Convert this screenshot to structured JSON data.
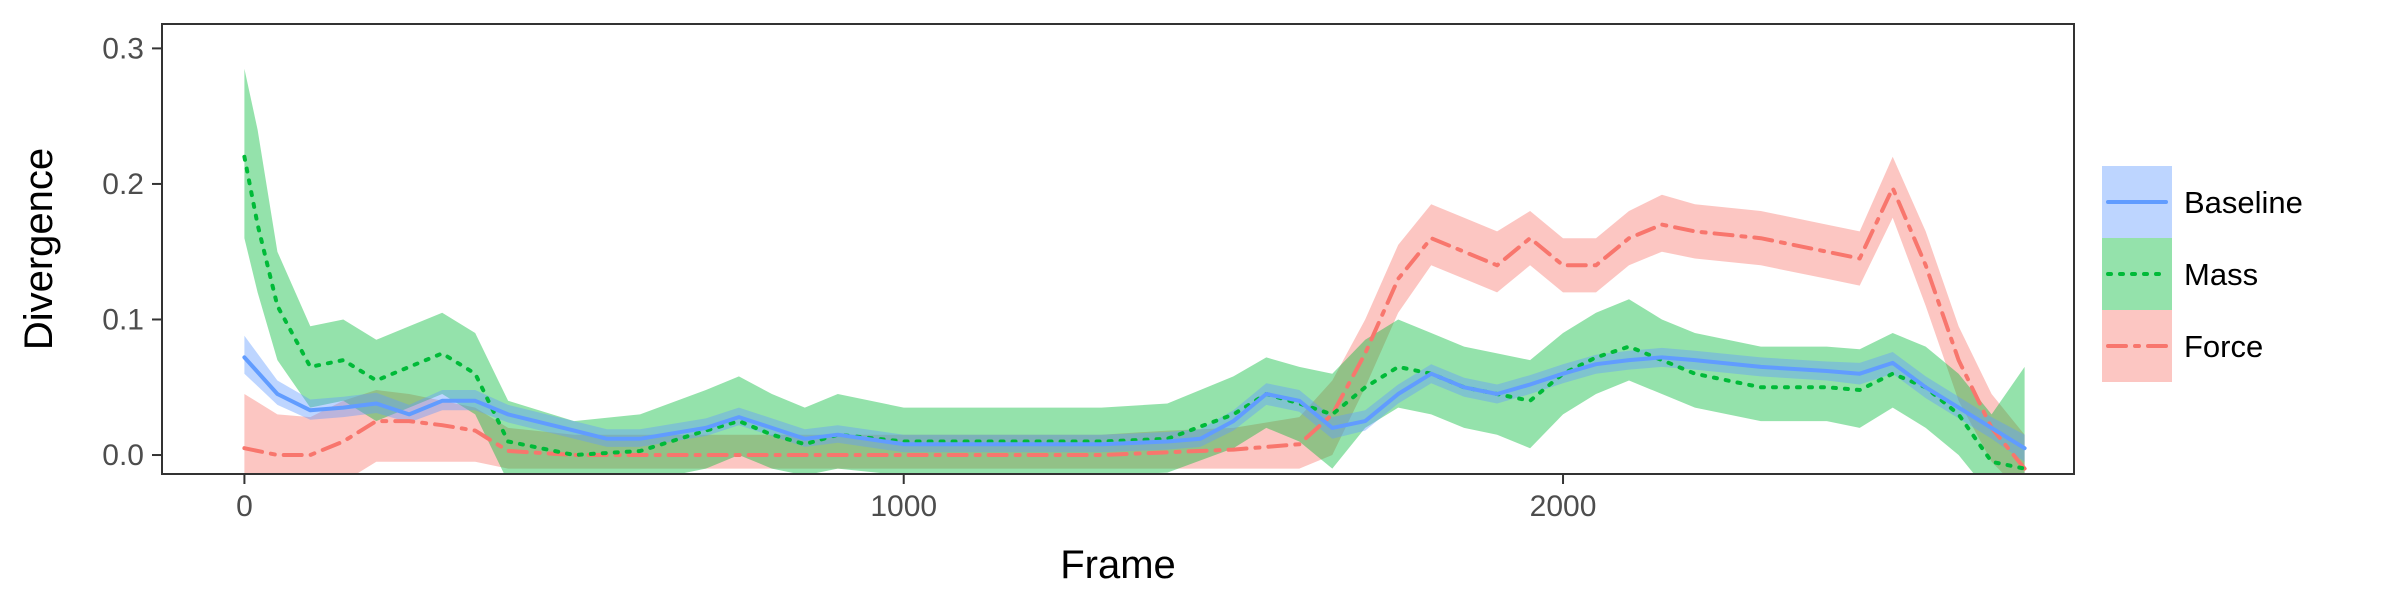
{
  "chart_data": {
    "type": "line",
    "xlabel": "Frame",
    "ylabel": "Divergence",
    "xlim": [
      -125,
      2775
    ],
    "ylim": [
      -0.014,
      0.318
    ],
    "x_ticks": [
      0,
      1000,
      2000
    ],
    "x_tick_labels": [
      "0",
      "1000",
      "2000"
    ],
    "y_ticks": [
      0.0,
      0.1,
      0.2,
      0.3
    ],
    "y_tick_labels": [
      "0.0",
      "0.1",
      "0.2",
      "0.3"
    ],
    "grid": false,
    "legend_position": "right",
    "series": [
      {
        "name": "Force",
        "color": "#F8766D",
        "line_style": "dashdot",
        "x": [
          0,
          50,
          100,
          150,
          200,
          250,
          300,
          350,
          400,
          500,
          600,
          700,
          800,
          900,
          1000,
          1100,
          1200,
          1300,
          1400,
          1500,
          1600,
          1650,
          1700,
          1750,
          1800,
          1850,
          1900,
          1950,
          2000,
          2050,
          2100,
          2150,
          2200,
          2300,
          2400,
          2450,
          2500,
          2550,
          2600,
          2650,
          2700
        ],
        "y": [
          0.005,
          0.0,
          0.0,
          0.01,
          0.025,
          0.025,
          0.022,
          0.018,
          0.003,
          0.0,
          0.0,
          0.0,
          0.0,
          0.0,
          0.0,
          0.0,
          0.0,
          0.0,
          0.002,
          0.004,
          0.008,
          0.03,
          0.075,
          0.13,
          0.16,
          0.15,
          0.14,
          0.16,
          0.14,
          0.14,
          0.16,
          0.17,
          0.165,
          0.16,
          0.15,
          0.145,
          0.197,
          0.14,
          0.07,
          0.02,
          -0.01
        ],
        "lower": [
          -0.03,
          -0.03,
          -0.03,
          -0.02,
          -0.005,
          -0.005,
          -0.005,
          -0.005,
          -0.01,
          -0.01,
          -0.01,
          -0.01,
          -0.01,
          -0.01,
          -0.01,
          -0.01,
          -0.01,
          -0.01,
          -0.01,
          -0.01,
          -0.01,
          0.0,
          0.05,
          0.105,
          0.14,
          0.13,
          0.12,
          0.14,
          0.12,
          0.12,
          0.14,
          0.15,
          0.145,
          0.14,
          0.13,
          0.125,
          0.175,
          0.11,
          0.04,
          -0.005,
          -0.03
        ],
        "upper": [
          0.045,
          0.03,
          0.028,
          0.04,
          0.048,
          0.045,
          0.04,
          0.035,
          0.02,
          0.015,
          0.015,
          0.015,
          0.015,
          0.015,
          0.015,
          0.015,
          0.015,
          0.015,
          0.018,
          0.02,
          0.028,
          0.055,
          0.1,
          0.155,
          0.185,
          0.175,
          0.165,
          0.18,
          0.16,
          0.16,
          0.18,
          0.192,
          0.185,
          0.18,
          0.17,
          0.165,
          0.22,
          0.165,
          0.095,
          0.045,
          0.015
        ]
      },
      {
        "name": "Mass",
        "color": "#00BA38",
        "line_style": "dotted",
        "x": [
          0,
          20,
          50,
          100,
          150,
          200,
          250,
          300,
          350,
          400,
          500,
          600,
          700,
          750,
          800,
          850,
          900,
          1000,
          1100,
          1200,
          1300,
          1400,
          1500,
          1550,
          1600,
          1650,
          1700,
          1750,
          1800,
          1850,
          1900,
          1950,
          2000,
          2050,
          2100,
          2150,
          2200,
          2300,
          2400,
          2450,
          2500,
          2550,
          2600,
          2650,
          2700
        ],
        "y": [
          0.22,
          0.17,
          0.11,
          0.065,
          0.07,
          0.055,
          0.065,
          0.075,
          0.06,
          0.01,
          0.0,
          0.003,
          0.018,
          0.025,
          0.015,
          0.008,
          0.015,
          0.01,
          0.01,
          0.01,
          0.01,
          0.012,
          0.03,
          0.045,
          0.038,
          0.03,
          0.05,
          0.065,
          0.06,
          0.05,
          0.045,
          0.04,
          0.06,
          0.072,
          0.08,
          0.07,
          0.06,
          0.05,
          0.05,
          0.048,
          0.06,
          0.05,
          0.03,
          -0.005,
          -0.01
        ],
        "lower": [
          0.16,
          0.12,
          0.07,
          0.035,
          0.04,
          0.025,
          0.035,
          0.045,
          0.03,
          -0.02,
          -0.02,
          -0.02,
          -0.01,
          0.0,
          -0.01,
          -0.015,
          -0.01,
          -0.015,
          -0.015,
          -0.015,
          -0.015,
          -0.013,
          0.005,
          0.02,
          0.01,
          -0.01,
          0.02,
          0.035,
          0.03,
          0.02,
          0.015,
          0.005,
          0.03,
          0.045,
          0.055,
          0.045,
          0.035,
          0.025,
          0.025,
          0.02,
          0.035,
          0.02,
          0.0,
          -0.03,
          -0.04
        ],
        "upper": [
          0.285,
          0.24,
          0.15,
          0.095,
          0.1,
          0.085,
          0.095,
          0.105,
          0.09,
          0.04,
          0.025,
          0.03,
          0.048,
          0.058,
          0.045,
          0.035,
          0.045,
          0.035,
          0.035,
          0.035,
          0.035,
          0.038,
          0.058,
          0.072,
          0.065,
          0.06,
          0.085,
          0.1,
          0.09,
          0.08,
          0.075,
          0.07,
          0.09,
          0.105,
          0.115,
          0.1,
          0.09,
          0.08,
          0.08,
          0.078,
          0.09,
          0.08,
          0.06,
          0.03,
          0.065
        ]
      },
      {
        "name": "Baseline",
        "color": "#619CFF",
        "line_style": "solid",
        "x": [
          0,
          50,
          100,
          150,
          200,
          250,
          300,
          350,
          400,
          500,
          550,
          600,
          700,
          750,
          800,
          850,
          900,
          1000,
          1100,
          1200,
          1300,
          1400,
          1450,
          1500,
          1550,
          1600,
          1650,
          1700,
          1750,
          1800,
          1850,
          1900,
          1950,
          2000,
          2050,
          2100,
          2150,
          2200,
          2300,
          2400,
          2450,
          2500,
          2550,
          2600,
          2650,
          2700
        ],
        "y": [
          0.072,
          0.045,
          0.033,
          0.035,
          0.038,
          0.03,
          0.04,
          0.04,
          0.03,
          0.018,
          0.012,
          0.012,
          0.02,
          0.028,
          0.02,
          0.012,
          0.015,
          0.008,
          0.008,
          0.008,
          0.008,
          0.01,
          0.012,
          0.025,
          0.045,
          0.04,
          0.02,
          0.025,
          0.045,
          0.06,
          0.05,
          0.045,
          0.052,
          0.06,
          0.067,
          0.07,
          0.072,
          0.07,
          0.065,
          0.062,
          0.06,
          0.068,
          0.05,
          0.035,
          0.02,
          0.005
        ],
        "lower": [
          0.06,
          0.037,
          0.026,
          0.028,
          0.031,
          0.024,
          0.033,
          0.033,
          0.024,
          0.012,
          0.006,
          0.006,
          0.014,
          0.022,
          0.014,
          0.006,
          0.009,
          0.002,
          0.002,
          0.002,
          0.002,
          0.004,
          0.006,
          0.018,
          0.037,
          0.032,
          0.012,
          0.018,
          0.038,
          0.053,
          0.043,
          0.038,
          0.045,
          0.053,
          0.06,
          0.063,
          0.065,
          0.063,
          0.058,
          0.055,
          0.052,
          0.06,
          0.042,
          0.027,
          0.012,
          -0.005
        ],
        "upper": [
          0.088,
          0.055,
          0.041,
          0.043,
          0.046,
          0.037,
          0.048,
          0.048,
          0.037,
          0.025,
          0.019,
          0.019,
          0.027,
          0.035,
          0.027,
          0.019,
          0.022,
          0.015,
          0.015,
          0.015,
          0.015,
          0.017,
          0.019,
          0.033,
          0.053,
          0.048,
          0.028,
          0.033,
          0.052,
          0.067,
          0.057,
          0.052,
          0.059,
          0.067,
          0.074,
          0.077,
          0.079,
          0.077,
          0.072,
          0.069,
          0.068,
          0.076,
          0.058,
          0.043,
          0.028,
          0.015
        ]
      }
    ],
    "legend_order": [
      "Baseline",
      "Mass",
      "Force"
    ]
  }
}
